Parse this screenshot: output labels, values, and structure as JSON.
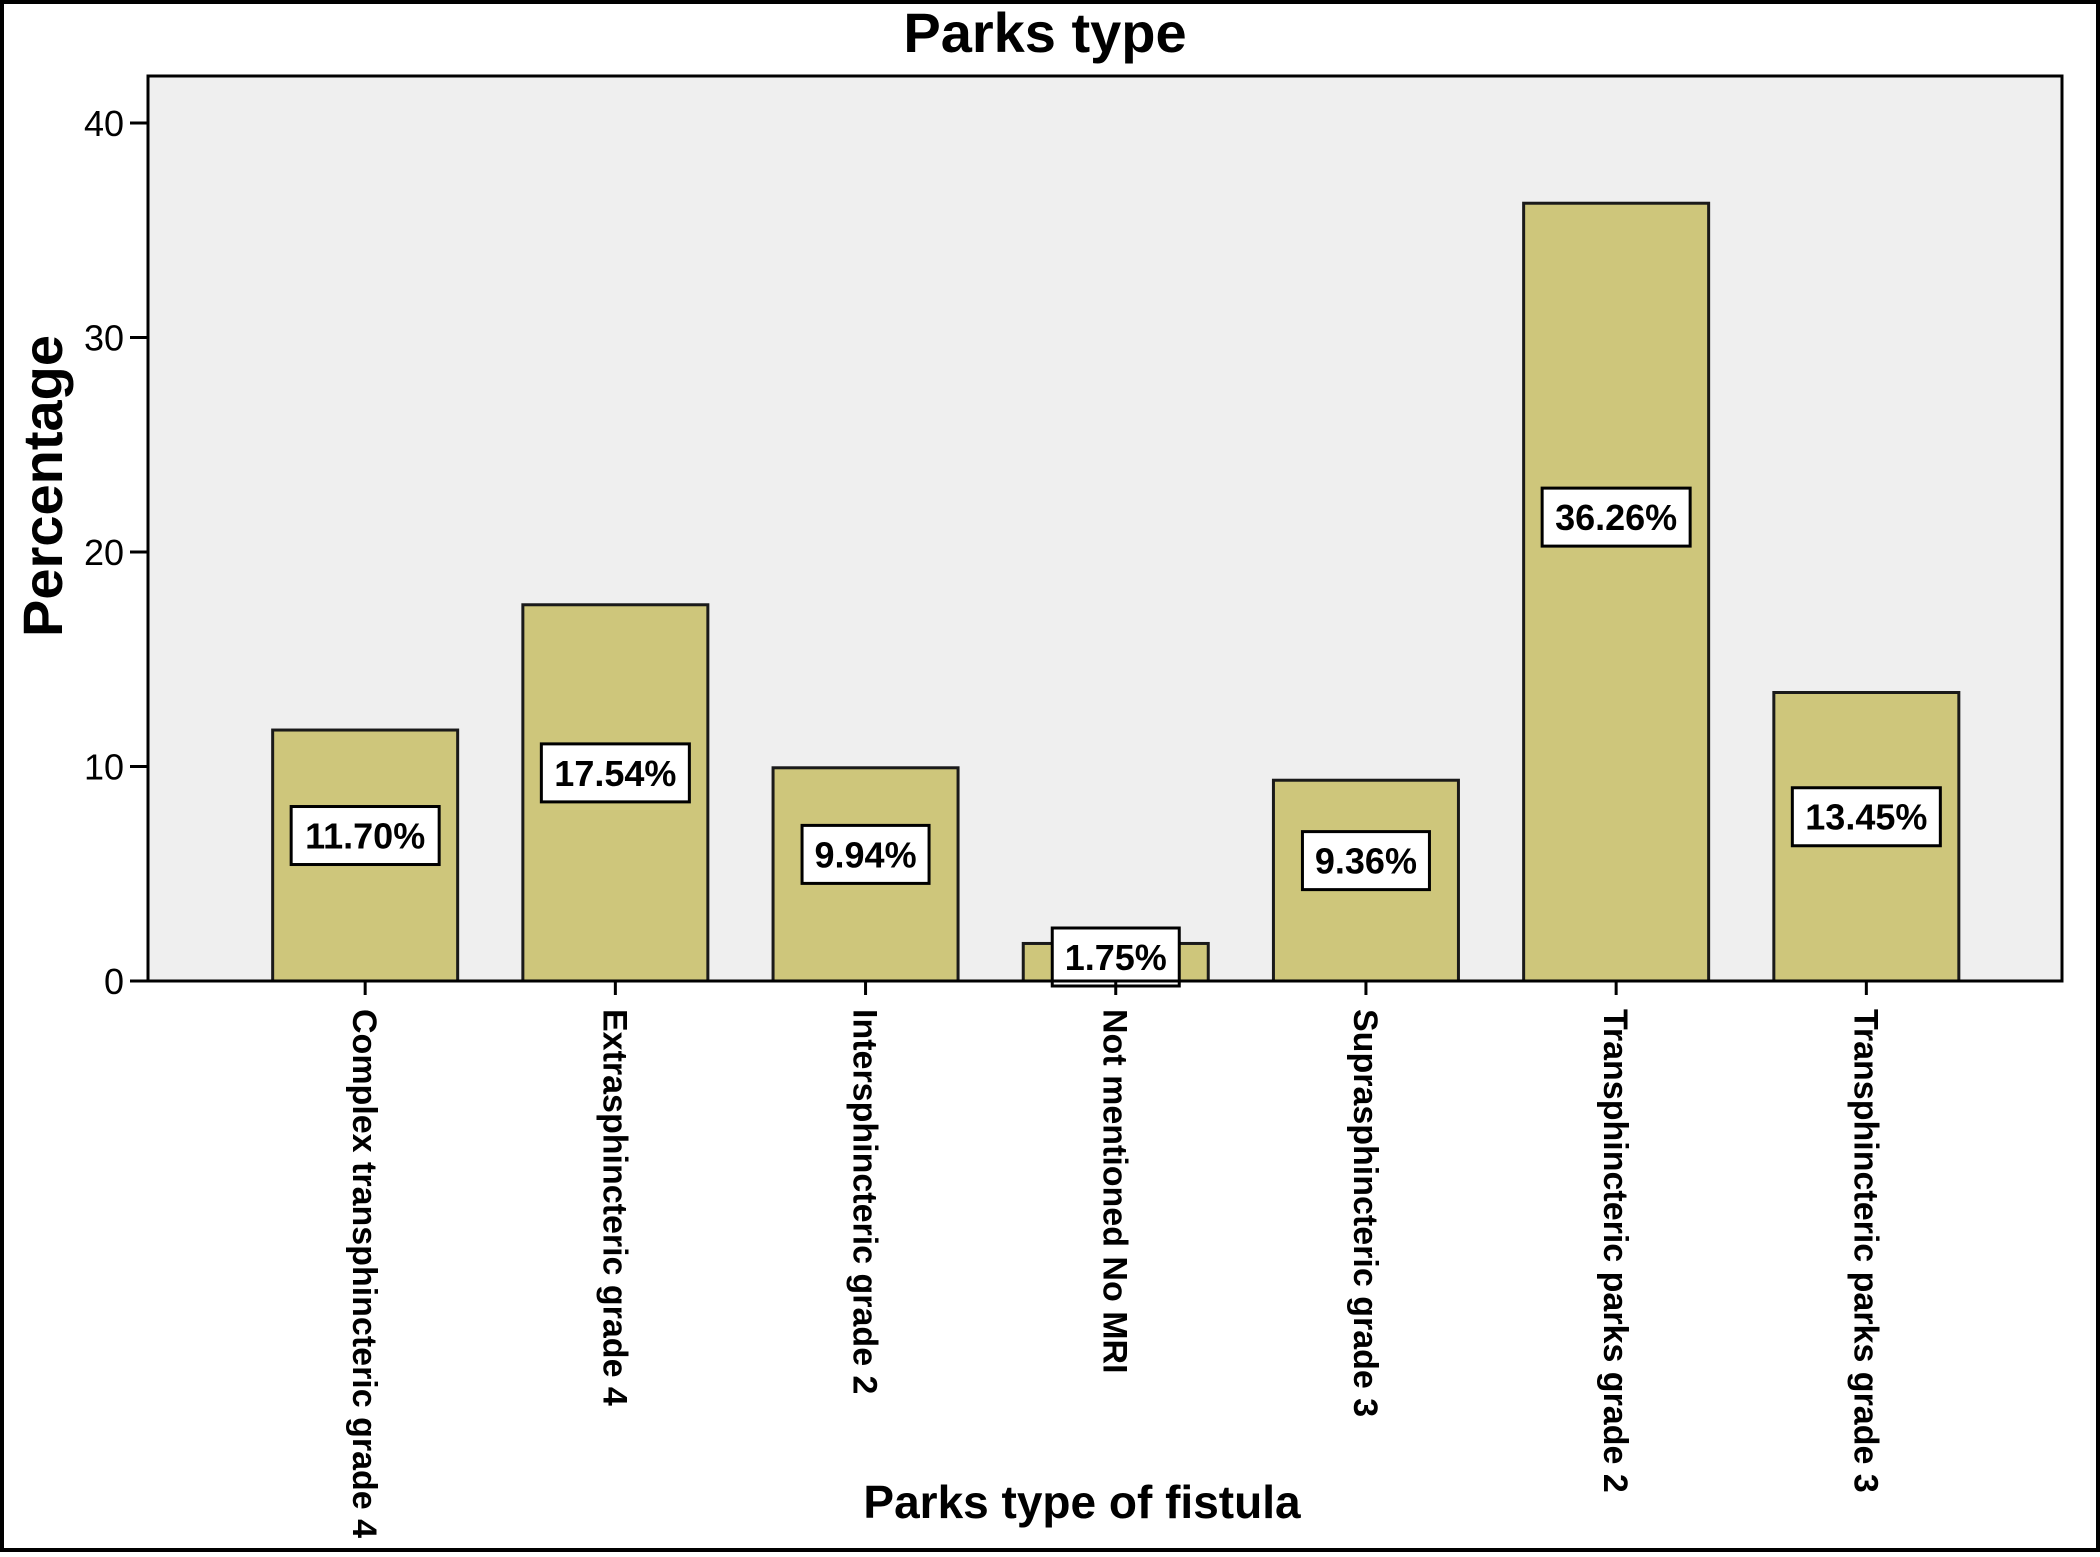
{
  "chart_data": {
    "type": "bar",
    "title": "Parks type",
    "xlabel": "Parks type of fistula",
    "ylabel": "Percentage",
    "categories": [
      "Complex transphincteric grade 4",
      "Extrasphincteric grade 4",
      "Intersphincteric grade 2",
      "Not mentioned No MRI",
      "Suprasphincteric grade 3",
      "Transphincteric parks grade 2",
      "Transphincteric parks grade 3"
    ],
    "values": [
      11.7,
      17.54,
      9.94,
      1.75,
      9.36,
      36.26,
      13.45
    ],
    "data_labels": [
      "11.70%",
      "17.54%",
      "9.94%",
      "1.75%",
      "9.36%",
      "36.26%",
      "13.45%"
    ],
    "ylim": [
      0,
      42
    ],
    "yticks": [
      0,
      10,
      20,
      30,
      40
    ],
    "grid": false,
    "colors": {
      "bar_fill": "#cec67b",
      "bar_stroke": "#1a1a1a",
      "plot_background": "#efefef",
      "label_background": "#ffffff"
    }
  }
}
